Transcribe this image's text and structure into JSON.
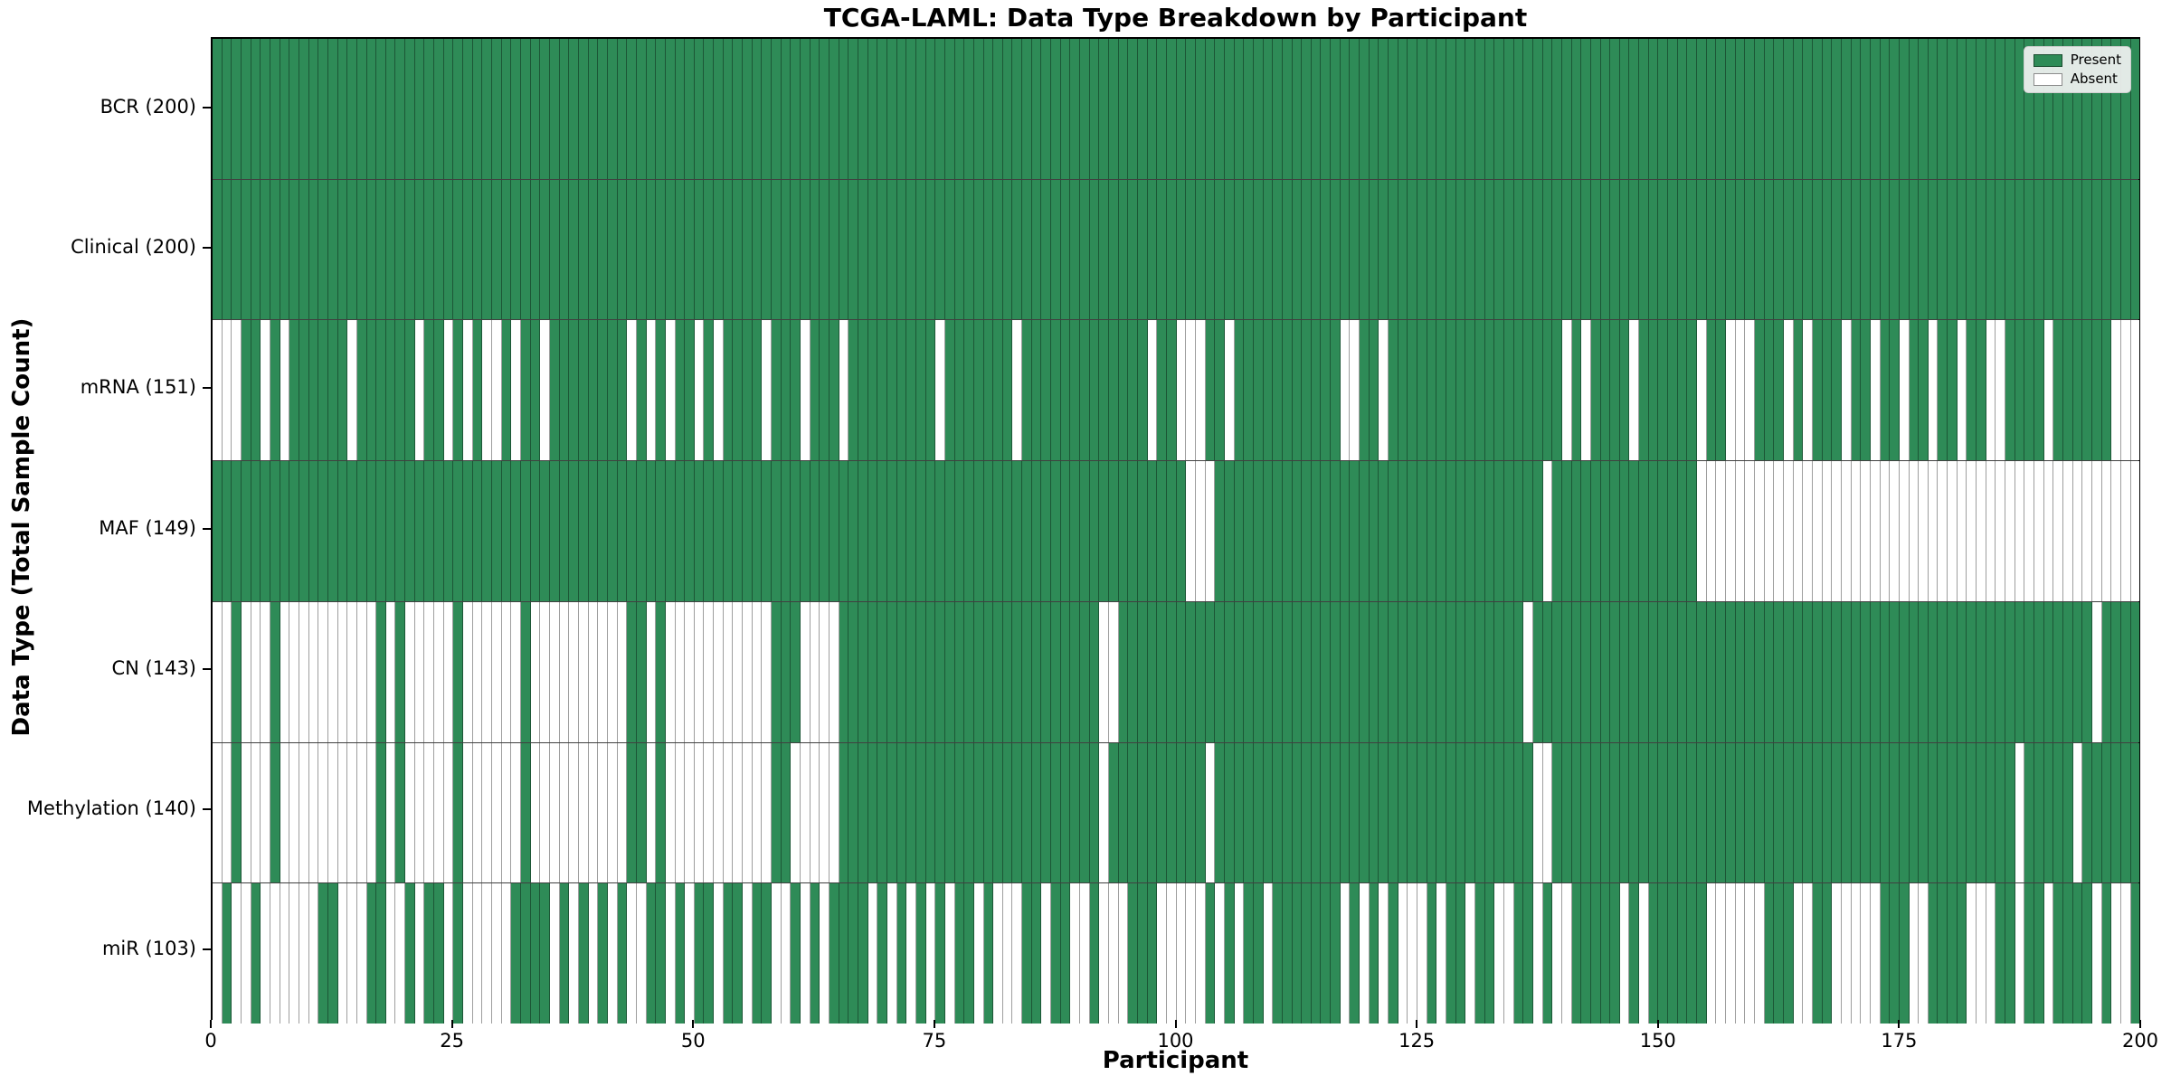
{
  "chart_data": {
    "type": "heatmap",
    "title": "TCGA-LAML: Data Type Breakdown by Participant",
    "xlabel": "Participant",
    "ylabel": "Data Type (Total Sample Count)",
    "x_range": [
      0,
      200
    ],
    "n_participants": 200,
    "x_ticks": [
      0,
      25,
      50,
      75,
      100,
      125,
      150,
      175,
      200
    ],
    "grid": false,
    "legend_position": "upper right",
    "colors": {
      "present": "#2e8b57",
      "absent": "#ffffff",
      "cell_edge": "rgba(0,0,0,0.38)",
      "plot_border": "#000000",
      "legend_bg": "#f2f2f2"
    },
    "legend": {
      "entries": [
        {
          "label": "Present",
          "color": "#2e8b57"
        },
        {
          "label": "Absent",
          "color": "#ffffff"
        }
      ]
    },
    "rows": [
      {
        "label": "BCR (200)",
        "data_type": "BCR",
        "total": 200,
        "presence": "11111111111111111111111111111111111111111111111111111111111111111111111111111111111111111111111111111111111111111111111111111111111111111111111111111111111111111111111111111111111111111111111111111111"
      },
      {
        "label": "Clinical (200)",
        "data_type": "Clinical",
        "total": 200,
        "presence": "11111111111111111111111111111111111111111111111111111111111111111111111111111111111111111111111111111111111111111111111111111111111111111111111111111111111111111111111111111111111111111111111111111111"
      },
      {
        "label": "mRNA (151)",
        "data_type": "mRNA",
        "total": 151,
        "presence": "00011010111111011111101101010010110111111110101011010111101110111011111111101111111011111111111110110001101111111111100110111111111111111111010111101111110110001110101110110110110110110011110111111"
      },
      {
        "label": "MAF (149)",
        "data_type": "MAF",
        "total": 149,
        "presence": "11111111111111111111111111111111111111111111111111111111111111111111111111111111111111111111111111111000111111111111111111111111111111111101111111111111110000000000000000000000000000000000000000000000"
      },
      {
        "label": "CN (143)",
        "data_type": "CN",
        "total": 143,
        "presence": "00100010000000000101000001000000100000000001101000000000001110000111111111111111111111111111001111111111111111111111111111111111111111110111111111111111111111111111111111111111111111111111111111101111"
      },
      {
        "label": "Methylation (140)",
        "data_type": "Methylation",
        "total": 140,
        "presence": "00100010000000000101000001000000100000000001101000000000001100000111111111111111111111111111011111111110111111111111111111111111111111111001111111111111111111111111111111111111111111111110111110111111"
      },
      {
        "label": "miR (103)",
        "data_type": "miR",
        "total": 103,
        "presence": "01001000000110001100101101000001111010101010011010110110110010101111010101010110100011011001000111000001010110111111101010100010110110011010011111010111111000000111001100000111001111000110110111101001"
      }
    ]
  }
}
